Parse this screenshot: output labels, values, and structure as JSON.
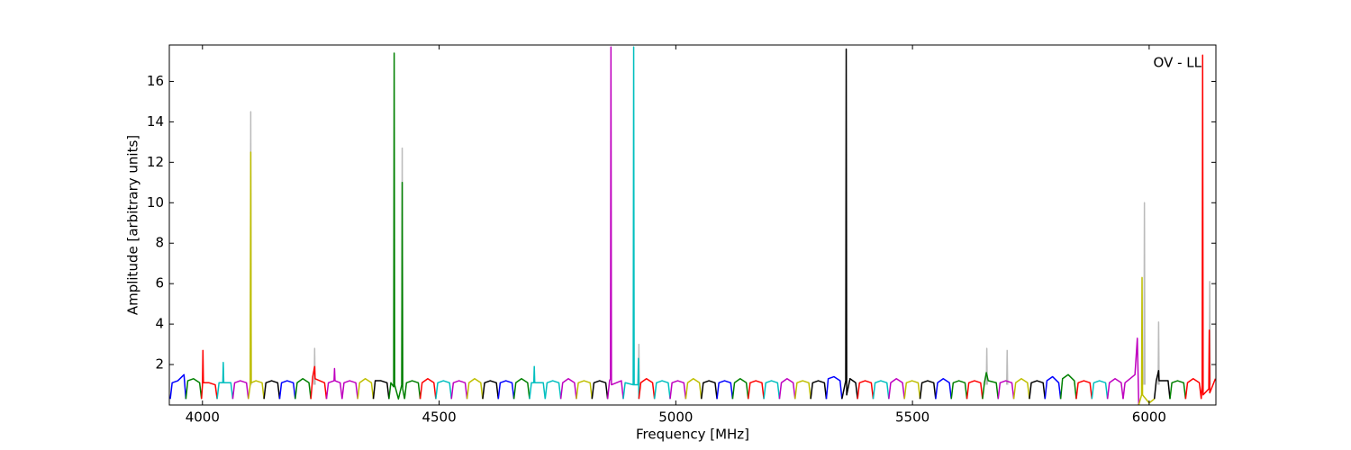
{
  "chart_data": {
    "type": "line",
    "annotation": "OV - LL",
    "xlabel": "Frequency [MHz]",
    "ylabel": "Amplitude [arbitrary units]",
    "xlim": [
      3930,
      6141
    ],
    "ylim": [
      0,
      17.8
    ],
    "xticks": [
      4000,
      4500,
      5000,
      5500,
      6000
    ],
    "yticks": [
      2,
      4,
      6,
      8,
      10,
      12,
      14,
      16
    ],
    "series": [
      {
        "color": "#bbbbbb",
        "x": [
          4101,
          4102,
          4103,
          4103,
          4236,
          4237,
          4238,
          4238,
          4421,
          4422,
          4423,
          4423,
          4921,
          4922,
          4923,
          4923,
          5656,
          5657,
          5658,
          5658,
          5699,
          5700,
          5701,
          5701,
          5989,
          5990,
          5991,
          5991,
          6019,
          6020,
          6021,
          6021,
          6127,
          6128,
          6129
        ],
        "values": [
          1.0,
          14.5,
          1.0,
          null,
          1.0,
          2.8,
          1.0,
          null,
          1.0,
          12.7,
          1.0,
          null,
          1.0,
          3.0,
          1.0,
          null,
          1.0,
          2.8,
          1.0,
          null,
          1.0,
          2.7,
          1.0,
          null,
          1.0,
          10.0,
          1.0,
          null,
          1.0,
          4.1,
          1.0,
          null,
          1.0,
          6.1,
          1.0
        ]
      },
      {
        "color": "#0000ff",
        "x": [
          3932,
          3936,
          3948,
          3961,
          3965
        ],
        "values": [
          0.3,
          1.1,
          1.2,
          1.5,
          0.3
        ]
      },
      {
        "color": "#008000",
        "x": [
          3965,
          3969,
          3981,
          3994,
          3998
        ],
        "values": [
          0.3,
          1.2,
          1.3,
          1.1,
          0.3
        ]
      },
      {
        "color": "#ff0000",
        "x": [
          3998,
          4000,
          4001,
          4002,
          4014,
          4027,
          4031
        ],
        "values": [
          0.3,
          1.0,
          2.7,
          1.1,
          1.1,
          1.0,
          0.3
        ]
      },
      {
        "color": "#00bfbf",
        "x": [
          4031,
          4035,
          4043,
          4044,
          4045,
          4060,
          4064
        ],
        "values": [
          0.3,
          1.1,
          1.1,
          2.1,
          1.1,
          1.1,
          0.3
        ]
      },
      {
        "color": "#bf00bf",
        "x": [
          4064,
          4068,
          4080,
          4093,
          4097
        ],
        "values": [
          0.3,
          1.1,
          1.2,
          1.1,
          0.3
        ]
      },
      {
        "color": "#bfbf00",
        "x": [
          4097,
          4101,
          4102,
          4103,
          4113,
          4126,
          4130
        ],
        "values": [
          0.3,
          1.0,
          12.5,
          1.1,
          1.2,
          1.1,
          0.3
        ]
      },
      {
        "color": "#000000",
        "x": [
          4130,
          4134,
          4146,
          4159,
          4163
        ],
        "values": [
          0.3,
          1.1,
          1.2,
          1.1,
          0.3
        ]
      },
      {
        "color": "#0000ff",
        "x": [
          4163,
          4167,
          4179,
          4192,
          4196
        ],
        "values": [
          0.3,
          1.1,
          1.2,
          1.1,
          0.3
        ]
      },
      {
        "color": "#008000",
        "x": [
          4196,
          4200,
          4212,
          4225,
          4229
        ],
        "values": [
          0.3,
          1.1,
          1.3,
          1.1,
          0.3
        ]
      },
      {
        "color": "#ff0000",
        "x": [
          4229,
          4233,
          4237,
          4238,
          4258,
          4262
        ],
        "values": [
          0.3,
          1.4,
          1.9,
          1.3,
          1.1,
          0.3
        ]
      },
      {
        "color": "#bf00bf",
        "x": [
          4262,
          4266,
          4278,
          4279,
          4280,
          4291,
          4295
        ],
        "values": [
          0.3,
          1.1,
          1.2,
          1.8,
          1.2,
          1.1,
          0.3
        ]
      },
      {
        "color": "#bf00bf",
        "x": [
          4295,
          4299,
          4311,
          4324,
          4328
        ],
        "values": [
          0.3,
          1.1,
          1.2,
          1.1,
          0.3
        ]
      },
      {
        "color": "#bfbf00",
        "x": [
          4328,
          4332,
          4344,
          4357,
          4361
        ],
        "values": [
          0.3,
          1.1,
          1.3,
          1.1,
          0.3
        ]
      },
      {
        "color": "#000000",
        "x": [
          4361,
          4365,
          4377,
          4390,
          4394
        ],
        "values": [
          0.3,
          1.2,
          1.2,
          1.1,
          0.3
        ]
      },
      {
        "color": "#008000",
        "x": [
          4394,
          4398,
          4404,
          4405,
          4406,
          4414,
          4421,
          4422,
          4423,
          4427
        ],
        "values": [
          0.3,
          1.1,
          0.9,
          17.4,
          1.0,
          0.3,
          1.0,
          11.0,
          0.8,
          0.3
        ]
      },
      {
        "color": "#008000",
        "x": [
          4427,
          4431,
          4443,
          4456,
          4460
        ],
        "values": [
          0.3,
          1.1,
          1.2,
          1.1,
          0.3
        ]
      },
      {
        "color": "#ff0000",
        "x": [
          4460,
          4464,
          4476,
          4489,
          4493
        ],
        "values": [
          0.3,
          1.1,
          1.3,
          1.1,
          0.3
        ]
      },
      {
        "color": "#00bfbf",
        "x": [
          4493,
          4497,
          4509,
          4522,
          4526
        ],
        "values": [
          0.3,
          1.1,
          1.2,
          1.1,
          0.3
        ]
      },
      {
        "color": "#bf00bf",
        "x": [
          4526,
          4530,
          4542,
          4555,
          4559
        ],
        "values": [
          0.3,
          1.1,
          1.2,
          1.1,
          0.3
        ]
      },
      {
        "color": "#bfbf00",
        "x": [
          4559,
          4563,
          4575,
          4588,
          4592
        ],
        "values": [
          0.3,
          1.1,
          1.3,
          1.1,
          0.3
        ]
      },
      {
        "color": "#000000",
        "x": [
          4592,
          4596,
          4608,
          4621,
          4625
        ],
        "values": [
          0.3,
          1.1,
          1.2,
          1.1,
          0.3
        ]
      },
      {
        "color": "#0000ff",
        "x": [
          4625,
          4629,
          4641,
          4654,
          4658
        ],
        "values": [
          0.3,
          1.1,
          1.2,
          1.1,
          0.3
        ]
      },
      {
        "color": "#008000",
        "x": [
          4658,
          4662,
          4674,
          4687,
          4691
        ],
        "values": [
          0.3,
          1.1,
          1.3,
          1.1,
          0.3
        ]
      },
      {
        "color": "#00bfbf",
        "x": [
          4691,
          4695,
          4700,
          4701,
          4702,
          4720,
          4724
        ],
        "values": [
          0.3,
          1.1,
          1.1,
          1.9,
          1.1,
          1.1,
          0.3
        ]
      },
      {
        "color": "#00bfbf",
        "x": [
          4724,
          4728,
          4740,
          4753,
          4757
        ],
        "values": [
          0.3,
          1.1,
          1.2,
          1.1,
          0.3
        ]
      },
      {
        "color": "#bf00bf",
        "x": [
          4757,
          4761,
          4773,
          4786,
          4790
        ],
        "values": [
          0.3,
          1.1,
          1.3,
          1.1,
          0.3
        ]
      },
      {
        "color": "#bfbf00",
        "x": [
          4790,
          4794,
          4806,
          4819,
          4823
        ],
        "values": [
          0.3,
          1.1,
          1.2,
          1.1,
          0.3
        ]
      },
      {
        "color": "#000000",
        "x": [
          4823,
          4827,
          4839,
          4852,
          4856
        ],
        "values": [
          0.3,
          1.1,
          1.2,
          1.1,
          0.3
        ]
      },
      {
        "color": "#bf00bf",
        "x": [
          4856,
          4860,
          4862,
          4863,
          4864,
          4885,
          4889
        ],
        "values": [
          0.3,
          1.2,
          1.3,
          17.7,
          1.0,
          1.2,
          0.3
        ]
      },
      {
        "color": "#00bfbf",
        "x": [
          4889,
          4893,
          4910,
          4911,
          4912,
          4920,
          4921,
          4922
        ],
        "values": [
          0.3,
          1.1,
          1.0,
          17.7,
          1.0,
          1.0,
          2.3,
          0.3
        ]
      },
      {
        "color": "#ff0000",
        "x": [
          4922,
          4926,
          4938,
          4951,
          4955
        ],
        "values": [
          0.3,
          1.1,
          1.3,
          1.1,
          0.3
        ]
      },
      {
        "color": "#00bfbf",
        "x": [
          4955,
          4959,
          4971,
          4984,
          4988
        ],
        "values": [
          0.3,
          1.1,
          1.2,
          1.1,
          0.3
        ]
      },
      {
        "color": "#bf00bf",
        "x": [
          4988,
          4992,
          5004,
          5017,
          5021
        ],
        "values": [
          0.3,
          1.1,
          1.2,
          1.1,
          0.3
        ]
      },
      {
        "color": "#bfbf00",
        "x": [
          5021,
          5025,
          5037,
          5050,
          5054
        ],
        "values": [
          0.3,
          1.1,
          1.3,
          1.1,
          0.3
        ]
      },
      {
        "color": "#000000",
        "x": [
          5054,
          5058,
          5070,
          5083,
          5087
        ],
        "values": [
          0.3,
          1.1,
          1.2,
          1.1,
          0.3
        ]
      },
      {
        "color": "#0000ff",
        "x": [
          5087,
          5091,
          5103,
          5116,
          5120
        ],
        "values": [
          0.3,
          1.1,
          1.2,
          1.1,
          0.3
        ]
      },
      {
        "color": "#008000",
        "x": [
          5120,
          5124,
          5136,
          5149,
          5153
        ],
        "values": [
          0.3,
          1.1,
          1.3,
          1.1,
          0.3
        ]
      },
      {
        "color": "#ff0000",
        "x": [
          5153,
          5157,
          5169,
          5182,
          5186
        ],
        "values": [
          0.3,
          1.1,
          1.2,
          1.1,
          0.3
        ]
      },
      {
        "color": "#00bfbf",
        "x": [
          5186,
          5190,
          5202,
          5215,
          5219
        ],
        "values": [
          0.3,
          1.1,
          1.2,
          1.1,
          0.3
        ]
      },
      {
        "color": "#bf00bf",
        "x": [
          5219,
          5223,
          5235,
          5248,
          5252
        ],
        "values": [
          0.3,
          1.1,
          1.3,
          1.1,
          0.3
        ]
      },
      {
        "color": "#bfbf00",
        "x": [
          5252,
          5256,
          5268,
          5281,
          5285
        ],
        "values": [
          0.3,
          1.1,
          1.2,
          1.1,
          0.3
        ]
      },
      {
        "color": "#000000",
        "x": [
          5285,
          5289,
          5301,
          5314,
          5318
        ],
        "values": [
          0.3,
          1.1,
          1.2,
          1.1,
          0.3
        ]
      },
      {
        "color": "#0000ff",
        "x": [
          5318,
          5322,
          5334,
          5347,
          5351
        ],
        "values": [
          0.3,
          1.3,
          1.4,
          1.2,
          0.3
        ]
      },
      {
        "color": "#000000",
        "x": [
          5351,
          5359,
          5360,
          5361,
          5368,
          5380,
          5384
        ],
        "values": [
          0.3,
          1.2,
          17.6,
          0.5,
          1.3,
          1.1,
          0.3
        ]
      },
      {
        "color": "#ff0000",
        "x": [
          5384,
          5388,
          5400,
          5413,
          5417
        ],
        "values": [
          0.3,
          1.1,
          1.2,
          1.1,
          0.3
        ]
      },
      {
        "color": "#00bfbf",
        "x": [
          5417,
          5421,
          5433,
          5446,
          5450
        ],
        "values": [
          0.3,
          1.1,
          1.2,
          1.1,
          0.3
        ]
      },
      {
        "color": "#bf00bf",
        "x": [
          5450,
          5454,
          5466,
          5479,
          5483
        ],
        "values": [
          0.3,
          1.1,
          1.3,
          1.1,
          0.3
        ]
      },
      {
        "color": "#bfbf00",
        "x": [
          5483,
          5487,
          5499,
          5512,
          5516
        ],
        "values": [
          0.3,
          1.1,
          1.2,
          1.1,
          0.3
        ]
      },
      {
        "color": "#000000",
        "x": [
          5516,
          5520,
          5532,
          5545,
          5549
        ],
        "values": [
          0.3,
          1.1,
          1.2,
          1.1,
          0.3
        ]
      },
      {
        "color": "#0000ff",
        "x": [
          5549,
          5553,
          5565,
          5578,
          5582
        ],
        "values": [
          0.3,
          1.1,
          1.3,
          1.1,
          0.3
        ]
      },
      {
        "color": "#008000",
        "x": [
          5582,
          5586,
          5598,
          5611,
          5615
        ],
        "values": [
          0.3,
          1.1,
          1.2,
          1.1,
          0.3
        ]
      },
      {
        "color": "#ff0000",
        "x": [
          5615,
          5619,
          5631,
          5644,
          5648
        ],
        "values": [
          0.3,
          1.1,
          1.2,
          1.1,
          0.3
        ]
      },
      {
        "color": "#008000",
        "x": [
          5648,
          5652,
          5656,
          5660,
          5677,
          5681
        ],
        "values": [
          0.3,
          1.1,
          1.6,
          1.2,
          1.1,
          0.3
        ]
      },
      {
        "color": "#bf00bf",
        "x": [
          5681,
          5685,
          5697,
          5710,
          5714
        ],
        "values": [
          0.3,
          1.1,
          1.2,
          1.1,
          0.3
        ]
      },
      {
        "color": "#bfbf00",
        "x": [
          5714,
          5718,
          5730,
          5743,
          5747
        ],
        "values": [
          0.3,
          1.1,
          1.3,
          1.1,
          0.3
        ]
      },
      {
        "color": "#000000",
        "x": [
          5747,
          5751,
          5763,
          5776,
          5780
        ],
        "values": [
          0.3,
          1.1,
          1.2,
          1.1,
          0.3
        ]
      },
      {
        "color": "#0000ff",
        "x": [
          5780,
          5784,
          5796,
          5809,
          5813
        ],
        "values": [
          0.3,
          1.2,
          1.4,
          1.1,
          0.3
        ]
      },
      {
        "color": "#008000",
        "x": [
          5813,
          5817,
          5829,
          5842,
          5846
        ],
        "values": [
          0.3,
          1.3,
          1.5,
          1.2,
          0.3
        ]
      },
      {
        "color": "#ff0000",
        "x": [
          5846,
          5850,
          5862,
          5875,
          5879
        ],
        "values": [
          0.3,
          1.1,
          1.2,
          1.1,
          0.3
        ]
      },
      {
        "color": "#00bfbf",
        "x": [
          5879,
          5883,
          5895,
          5908,
          5912
        ],
        "values": [
          0.3,
          1.1,
          1.2,
          1.1,
          0.3
        ]
      },
      {
        "color": "#bf00bf",
        "x": [
          5912,
          5916,
          5928,
          5941,
          5945
        ],
        "values": [
          0.3,
          1.1,
          1.3,
          1.1,
          0.3
        ]
      },
      {
        "color": "#bf00bf",
        "x": [
          5945,
          5949,
          5970,
          5975,
          5978
        ],
        "values": [
          0.3,
          1.1,
          1.5,
          3.3,
          0.0
        ]
      },
      {
        "color": "#bfbf00",
        "x": [
          5978,
          5984,
          5985,
          5986,
          6000,
          6011
        ],
        "values": [
          0.0,
          0.5,
          6.3,
          0.5,
          0.1,
          0.3
        ]
      },
      {
        "color": "#000000",
        "x": [
          6011,
          6015,
          6020,
          6021,
          6040,
          6044
        ],
        "values": [
          0.3,
          1.2,
          1.7,
          1.2,
          1.2,
          0.3
        ]
      },
      {
        "color": "#008000",
        "x": [
          6044,
          6048,
          6060,
          6073,
          6077
        ],
        "values": [
          0.3,
          1.1,
          1.2,
          1.1,
          0.3
        ]
      },
      {
        "color": "#ff0000",
        "x": [
          6077,
          6081,
          6093,
          6106,
          6110
        ],
        "values": [
          0.3,
          1.1,
          1.3,
          1.1,
          0.3
        ]
      },
      {
        "color": "#ff0000",
        "x": [
          6110,
          6112,
          6113,
          6114,
          6126,
          6127,
          6128,
          6140
        ],
        "values": [
          0.3,
          1.0,
          17.3,
          0.5,
          0.8,
          3.7,
          0.6,
          1.3
        ]
      }
    ]
  }
}
